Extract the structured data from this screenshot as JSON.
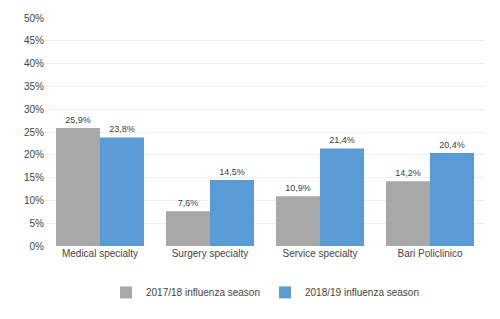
{
  "chart_data": {
    "type": "bar",
    "categories": [
      "Medical specialty",
      "Surgery specialty",
      "Service specialty",
      "Bari Policlinico"
    ],
    "series": [
      {
        "name": "2017/18 influenza season",
        "color": "#a8a8a8",
        "values": [
          25.9,
          7.6,
          10.9,
          14.2
        ],
        "value_labels": [
          "25,9%",
          "7,6%",
          "10,9%",
          "14,2%"
        ]
      },
      {
        "name": "2018/19 influenza season",
        "color": "#5b9bd5",
        "values": [
          23.8,
          14.5,
          21.4,
          20.4
        ],
        "value_labels": [
          "23,8%",
          "14,5%",
          "21,4%",
          "20,4%"
        ]
      }
    ],
    "ylim": [
      0,
      50
    ],
    "yticks": [
      {
        "value": 0,
        "label": "0%"
      },
      {
        "value": 5,
        "label": "5%"
      },
      {
        "value": 10,
        "label": "10%"
      },
      {
        "value": 15,
        "label": "15%"
      },
      {
        "value": 20,
        "label": "20%"
      },
      {
        "value": 25,
        "label": "25%"
      },
      {
        "value": 30,
        "label": "30%"
      },
      {
        "value": 35,
        "label": "35%"
      },
      {
        "value": 40,
        "label": "40%"
      },
      {
        "value": 45,
        "label": "45%"
      },
      {
        "value": 50,
        "label": "50%"
      }
    ],
    "grid": true,
    "legend": "bottom"
  }
}
